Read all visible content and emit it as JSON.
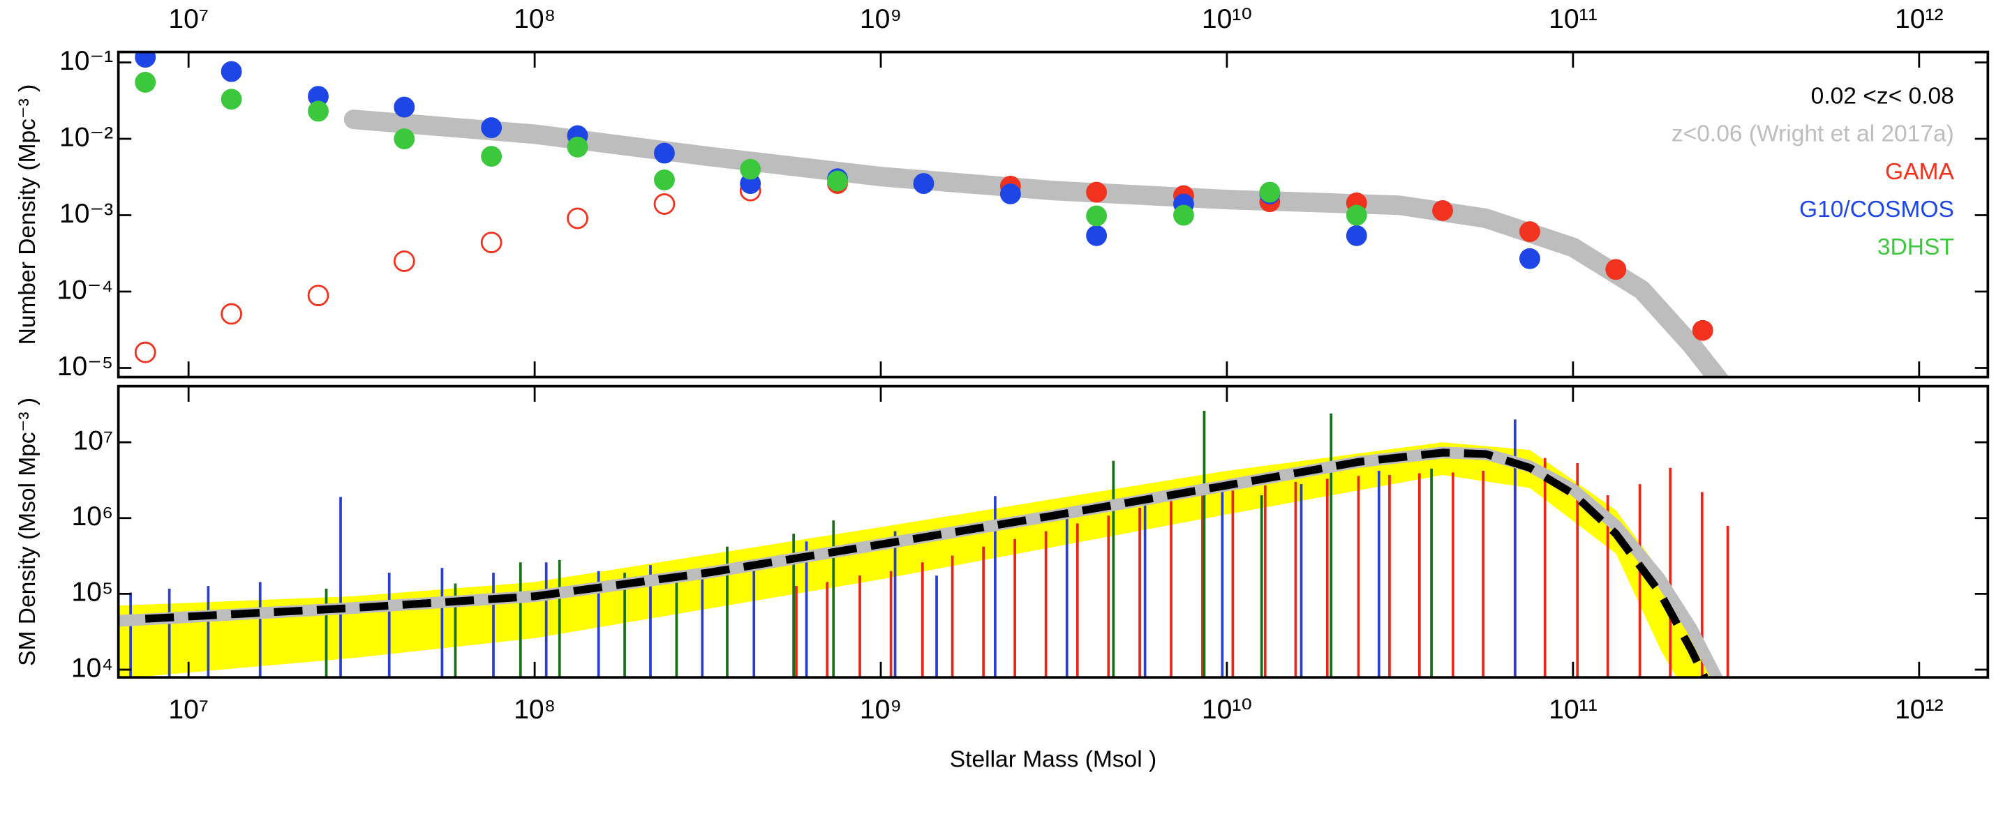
{
  "chart_data": [
    {
      "type": "scatter",
      "ylabel": "Number Density (Mpc⁻³ )",
      "annotation": "0.02 <z< 0.08",
      "xscale": "log",
      "yscale": "log",
      "xlim": [
        6270000,
        1580000000000
      ],
      "ylim": [
        7.6e-06,
        0.137
      ],
      "xtick_position": "top",
      "xticks": [
        {
          "value": 10000000,
          "label": "10⁷"
        },
        {
          "value": 100000000,
          "label": "10⁸"
        },
        {
          "value": 1000000000,
          "label": "10⁹"
        },
        {
          "value": 10000000000,
          "label": "10¹⁰"
        },
        {
          "value": 100000000000,
          "label": "10¹¹"
        },
        {
          "value": 1000000000000,
          "label": "10¹²"
        }
      ],
      "yticks": [
        {
          "value": 1e-05,
          "label": "10⁻⁵"
        },
        {
          "value": 0.0001,
          "label": "10⁻⁴"
        },
        {
          "value": 0.001,
          "label": "10⁻³"
        },
        {
          "value": 0.01,
          "label": "10⁻²"
        },
        {
          "value": 0.1,
          "label": "10⁻¹"
        }
      ],
      "legend_position": "top right",
      "series": [
        {
          "name": "z<0.06 (Wright et al 2017a)",
          "type": "line",
          "color": "#bdbdbd",
          "x": [
            30000000,
            100000000,
            316000000,
            1000000000,
            3160000000,
            10000000000,
            31600000000,
            56000000000,
            100000000000,
            158000000000,
            220000000000,
            280000000000
          ],
          "values": [
            0.018,
            0.0115,
            0.0059,
            0.0032,
            0.0021,
            0.0016,
            0.00135,
            0.00091,
            0.00038,
            0.000105,
            2e-05,
            5e-06
          ]
        },
        {
          "name": "GAMA",
          "type": "scatter",
          "marker": "filled",
          "color": "#f0321e",
          "x": [
            750000000,
            2370000000,
            4200000000,
            7500000000,
            13300000000,
            23700000000,
            42000000000,
            75000000000,
            133000000000,
            237000000000
          ],
          "values": [
            0.0026,
            0.0024,
            0.002,
            0.0018,
            0.0015,
            0.00145,
            0.00115,
            0.00061,
            0.000195,
            3.1e-05
          ]
        },
        {
          "type": "scatter",
          "marker": "open",
          "color": "#f0321e",
          "x": [
            7500000,
            13300000,
            23700000,
            42000000,
            75000000,
            133000000,
            237000000,
            420000000
          ],
          "values": [
            1.6e-05,
            5.1e-05,
            8.9e-05,
            0.00025,
            0.00044,
            0.00091,
            0.0014,
            0.0021
          ]
        },
        {
          "name": "G10/COSMOS",
          "type": "scatter",
          "marker": "filled",
          "color": "#1e46e6",
          "x": [
            7500000,
            13300000,
            23700000,
            42000000,
            75000000,
            133000000,
            237000000,
            420000000,
            750000000,
            1330000000,
            2370000000,
            4200000000,
            7500000000,
            13300000000,
            23700000000,
            75000000000
          ],
          "values": [
            0.117,
            0.076,
            0.036,
            0.026,
            0.014,
            0.011,
            0.0065,
            0.0026,
            0.003,
            0.0026,
            0.0019,
            0.00054,
            0.0014,
            0.0019,
            0.00054,
            0.00027
          ]
        },
        {
          "name": "3DHST",
          "type": "scatter",
          "marker": "filled",
          "color": "#3cc83c",
          "x": [
            7500000,
            13300000,
            23700000,
            42000000,
            75000000,
            133000000,
            237000000,
            420000000,
            750000000,
            4200000000,
            7500000000,
            13300000000,
            23700000000
          ],
          "values": [
            0.055,
            0.033,
            0.023,
            0.01,
            0.0059,
            0.0078,
            0.0029,
            0.004,
            0.0028,
            0.00098,
            0.001,
            0.002,
            0.001
          ]
        }
      ]
    },
    {
      "type": "line",
      "ylabel": "SM Density (Msol Mpc⁻³ )",
      "xlabel": "Stellar Mass (Msol )",
      "xscale": "log",
      "yscale": "log",
      "xlim": [
        6270000,
        1580000000000
      ],
      "ylim": [
        7900,
        55000000
      ],
      "xtick_position": "bottom",
      "xticks": [
        {
          "value": 10000000,
          "label": "10⁷"
        },
        {
          "value": 100000000,
          "label": "10⁸"
        },
        {
          "value": 1000000000,
          "label": "10⁹"
        },
        {
          "value": 10000000000,
          "label": "10¹⁰"
        },
        {
          "value": 100000000000,
          "label": "10¹¹"
        },
        {
          "value": 1000000000000,
          "label": "10¹²"
        }
      ],
      "yticks": [
        {
          "value": 10000,
          "label": "10⁴"
        },
        {
          "value": 100000,
          "label": "10⁵"
        },
        {
          "value": 1000000,
          "label": "10⁶"
        },
        {
          "value": 10000000,
          "label": "10⁷"
        }
      ],
      "series": [
        {
          "type": "band",
          "color": "#ffff00",
          "x": [
            6300000,
            30000000,
            100000000,
            1000000000,
            10000000000,
            42000000000,
            75000000000,
            133000000000,
            180000000000,
            200000000000,
            260000000000
          ],
          "upper": [
            70000,
            93000,
            143000,
            760000,
            4200000,
            10000000,
            7900000,
            1270000,
            190000,
            85000,
            7600
          ],
          "lower": [
            7600,
            14300,
            26000,
            155000,
            1120000,
            3700000,
            2500000,
            340000,
            17400,
            7600,
            7600
          ]
        },
        {
          "type": "bar",
          "color": "#e8261a",
          "x": [
            570000000,
            700000000,
            870000000,
            1070000000,
            1320000000,
            1610000000,
            1980000000,
            2440000000,
            3000000000,
            3700000000,
            4550000000,
            5600000000,
            6900000000,
            8500000000,
            10400000000,
            12900000000,
            15800000000,
            19500000000,
            24000000000,
            29500000000,
            36000000000,
            45000000000,
            55000000000,
            68000000000,
            83000000000,
            103000000000,
            126000000000,
            156000000000,
            191000000000,
            236000000000,
            280000000000
          ],
          "values": [
            127000,
            143000,
            174000,
            200000,
            260000,
            320000,
            420000,
            530000,
            670000,
            850000,
            1080000,
            1370000,
            1670000,
            2000000,
            2300000,
            2700000,
            3000000,
            3300000,
            3600000,
            3700000,
            3900000,
            4000000,
            4200000,
            4900000,
            6200000,
            5300000,
            2000000,
            2800000,
            4600000,
            2200000,
            790000
          ]
        },
        {
          "type": "bar",
          "color": "#2a3fcf",
          "x": [
            6800000,
            8800000,
            11400000,
            16100000,
            27500000,
            38000000,
            54000000,
            76000000,
            108000000,
            153000000,
            216000000,
            305000000,
            430000000,
            610000000,
            1100000000,
            1450000000,
            2140000000,
            3450000000,
            5800000000,
            9700000000,
            16400000000,
            27500000000,
            68000000000
          ],
          "values": [
            104000,
            117000,
            127000,
            143000,
            1900000,
            190000,
            220000,
            190000,
            260000,
            200000,
            240000,
            220000,
            280000,
            490000,
            670000,
            174000,
            1950000,
            1170000,
            1600000,
            2400000,
            2800000,
            4200000,
            20000000
          ]
        },
        {
          "type": "bar",
          "color": "#1a6e1a",
          "x": [
            25000000,
            59000000,
            91000000,
            118000000,
            182000000,
            257000000,
            360000000,
            560000000,
            730000000,
            4700000000,
            8600000000,
            12600000000,
            20000000000,
            39000000000
          ],
          "values": [
            117000,
            137000,
            260000,
            280000,
            190000,
            200000,
            420000,
            620000,
            930000,
            5700000,
            26000000,
            2000000,
            24000000,
            4500000
          ]
        },
        {
          "type": "line",
          "color": "#bdbdbd",
          "x": [
            6300000,
            30000000,
            100000000,
            316000000,
            1000000000,
            3160000000,
            10000000000,
            24000000000,
            42000000000,
            56000000000,
            75000000000,
            100000000000,
            133000000000,
            178000000000,
            220000000000,
            260000000000
          ],
          "values": [
            44000,
            65000,
            93000,
            190000,
            450000,
            1080000,
            2700000,
            5500000,
            7300000,
            7000000,
            4800000,
            2400000,
            800000,
            160000,
            35000,
            7900
          ]
        },
        {
          "type": "line",
          "dash": true,
          "color": "#000000",
          "x": [
            7500000,
            30000000,
            100000000,
            316000000,
            1000000000,
            3160000000,
            10000000000,
            24000000000,
            42000000000,
            56000000000,
            75000000000,
            100000000000,
            133000000000,
            178000000000,
            220000000000,
            240000000000
          ],
          "values": [
            47000,
            65000,
            93000,
            190000,
            450000,
            1080000,
            2700000,
            5500000,
            7300000,
            7000000,
            4600000,
            2100000,
            620000,
            105000,
            18000,
            7900
          ]
        }
      ]
    }
  ]
}
